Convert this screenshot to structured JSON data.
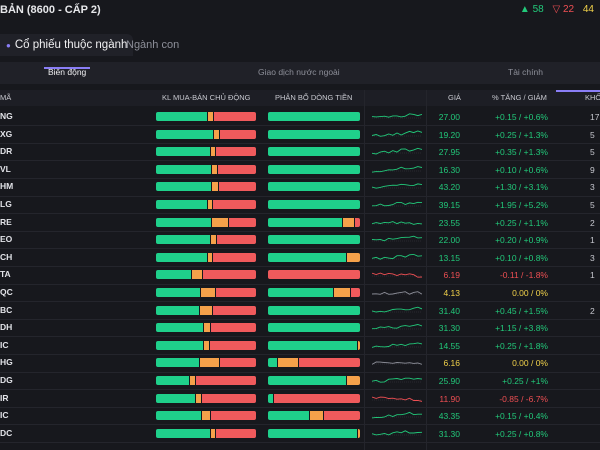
{
  "header": {
    "title": "BẢN (8600 - CẤP 2)",
    "up_count": "▲ 58",
    "down_count": "▽ 22",
    "ref_count": "44"
  },
  "tabs": {
    "main": "Cổ phiếu thuộc ngành",
    "sub": "Ngành con"
  },
  "subtabs": [
    "Biến động",
    "Giao dịch nước ngoài",
    "Tài chính"
  ],
  "columns": {
    "symbol": "MÃ",
    "flow": "KL MUA-BÁN CHỦ ĐỘNG",
    "alloc": "PHÂN BỔ DÒNG TIỀN",
    "price": "GIÁ",
    "change": "% TĂNG / GIẢM",
    "khoi": "KHỐ"
  },
  "colors": {
    "up": "#22c97a",
    "down": "#ef4f53",
    "ref": "#f2d24a",
    "accent": "#8a7ef6"
  },
  "rows": [
    {
      "sym": "NG",
      "price": "27.00",
      "change": "+0.15 / +0.6%",
      "state": "up",
      "khoi": "17",
      "flow": [
        0.52,
        0.05,
        0.43
      ],
      "alloc": [
        1,
        0,
        0
      ],
      "trend": "up"
    },
    {
      "sym": "XG",
      "price": "19.20",
      "change": "+0.25 / +1.3%",
      "state": "up",
      "khoi": "5",
      "flow": [
        0.58,
        0.05,
        0.37
      ],
      "alloc": [
        1,
        0,
        0
      ],
      "trend": "up"
    },
    {
      "sym": "DR",
      "price": "27.95",
      "change": "+0.35 / +1.3%",
      "state": "up",
      "khoi": "5",
      "flow": [
        0.55,
        0.04,
        0.41
      ],
      "alloc": [
        1,
        0,
        0
      ],
      "trend": "up"
    },
    {
      "sym": "VL",
      "price": "16.30",
      "change": "+0.10 / +0.6%",
      "state": "up",
      "khoi": "9",
      "flow": [
        0.56,
        0.05,
        0.39
      ],
      "alloc": [
        1,
        0,
        0
      ],
      "trend": "up"
    },
    {
      "sym": "HM",
      "price": "43.20",
      "change": "+1.30 / +3.1%",
      "state": "up",
      "khoi": "3",
      "flow": [
        0.56,
        0.06,
        0.38
      ],
      "alloc": [
        1,
        0,
        0
      ],
      "trend": "up"
    },
    {
      "sym": "LG",
      "price": "39.15",
      "change": "+1.95 / +5.2%",
      "state": "up",
      "khoi": "5",
      "flow": [
        0.52,
        0.04,
        0.44
      ],
      "alloc": [
        1,
        0,
        0
      ],
      "trend": "up"
    },
    {
      "sym": "RE",
      "price": "23.55",
      "change": "+0.25 / +1.1%",
      "state": "up",
      "khoi": "2",
      "flow": [
        0.56,
        0.16,
        0.28
      ],
      "alloc": [
        0.82,
        0.12,
        0.06
      ],
      "trend": "mixed"
    },
    {
      "sym": "EO",
      "price": "22.00",
      "change": "+0.20 / +0.9%",
      "state": "up",
      "khoi": "1",
      "flow": [
        0.55,
        0.05,
        0.4
      ],
      "alloc": [
        1,
        0,
        0
      ],
      "trend": "up"
    },
    {
      "sym": "CH",
      "price": "13.15",
      "change": "+0.10 / +0.8%",
      "state": "up",
      "khoi": "3",
      "flow": [
        0.52,
        0.04,
        0.44
      ],
      "alloc": [
        0.86,
        0.14,
        0
      ],
      "trend": "up"
    },
    {
      "sym": "TA",
      "price": "6.19",
      "change": "-0.11 / -1.8%",
      "state": "down",
      "khoi": "1",
      "flow": [
        0.36,
        0.1,
        0.54
      ],
      "alloc": [
        0,
        0,
        1
      ],
      "trend": "down"
    },
    {
      "sym": "QC",
      "price": "4.13",
      "change": "0.00 / 0%",
      "state": "ref",
      "khoi": "",
      "flow": [
        0.45,
        0.14,
        0.41
      ],
      "alloc": [
        0.72,
        0.18,
        0.1
      ],
      "trend": "flat"
    },
    {
      "sym": "BC",
      "price": "31.40",
      "change": "+0.45 / +1.5%",
      "state": "up",
      "khoi": "2",
      "flow": [
        0.44,
        0.12,
        0.44
      ],
      "alloc": [
        1,
        0,
        0
      ],
      "trend": "up"
    },
    {
      "sym": "DH",
      "price": "31.30",
      "change": "+1.15 / +3.8%",
      "state": "up",
      "khoi": "",
      "flow": [
        0.48,
        0.06,
        0.46
      ],
      "alloc": [
        1,
        0,
        0
      ],
      "trend": "up"
    },
    {
      "sym": "IC",
      "price": "14.55",
      "change": "+0.25 / +1.8%",
      "state": "up",
      "khoi": "",
      "flow": [
        0.48,
        0.05,
        0.47
      ],
      "alloc": [
        0.98,
        0.02,
        0
      ],
      "trend": "up"
    },
    {
      "sym": "HG",
      "price": "6.16",
      "change": "0.00 / 0%",
      "state": "ref",
      "khoi": "",
      "flow": [
        0.44,
        0.19,
        0.37
      ],
      "alloc": [
        0.1,
        0.22,
        0.68
      ],
      "trend": "flat"
    },
    {
      "sym": "DG",
      "price": "25.90",
      "change": "+0.25 / +1%",
      "state": "up",
      "khoi": "",
      "flow": [
        0.34,
        0.05,
        0.61
      ],
      "alloc": [
        0.86,
        0.14,
        0
      ],
      "trend": "up"
    },
    {
      "sym": "IR",
      "price": "11.90",
      "change": "-0.85 / -6.7%",
      "state": "down",
      "khoi": "",
      "flow": [
        0.4,
        0.05,
        0.55
      ],
      "alloc": [
        0.05,
        0,
        0.95
      ],
      "trend": "down"
    },
    {
      "sym": "IC",
      "price": "43.35",
      "change": "+0.15 / +0.4%",
      "state": "up",
      "khoi": "",
      "flow": [
        0.46,
        0.08,
        0.46
      ],
      "alloc": [
        0.45,
        0.15,
        0.4
      ],
      "trend": "up"
    },
    {
      "sym": "DC",
      "price": "31.30",
      "change": "+0.25 / +0.8%",
      "state": "up",
      "khoi": "",
      "flow": [
        0.55,
        0.04,
        0.41
      ],
      "alloc": [
        0.98,
        0.02,
        0
      ],
      "trend": "up"
    }
  ]
}
